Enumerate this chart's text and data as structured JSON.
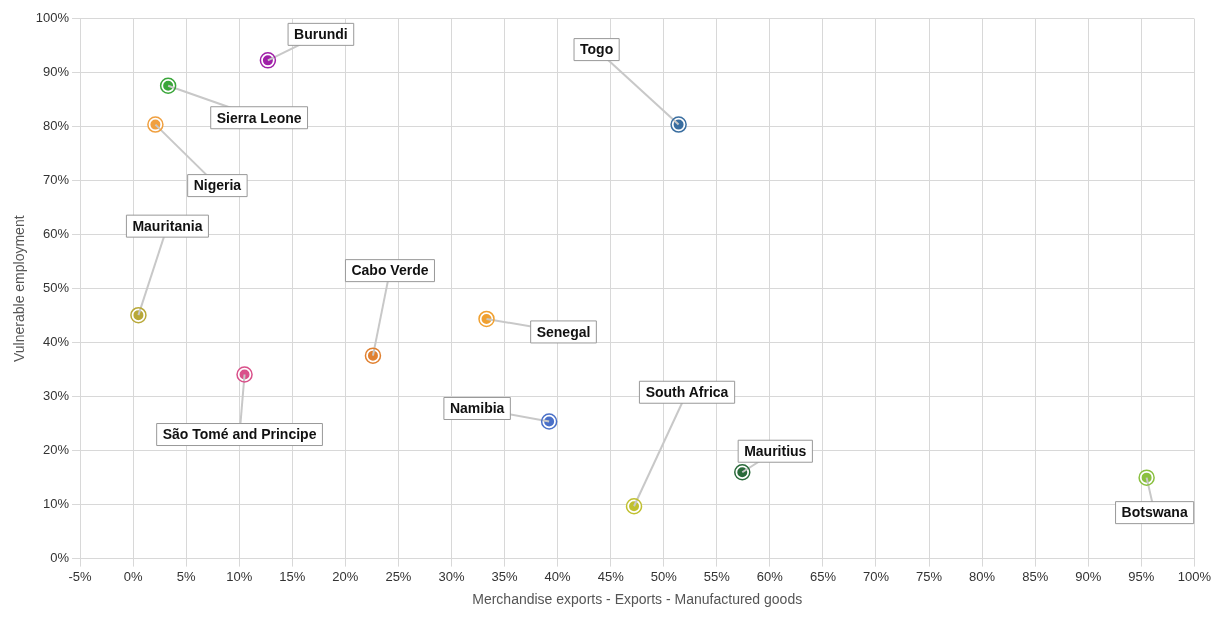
{
  "chart_data": {
    "type": "scatter",
    "xlabel": "Merchandise exports - Exports - Manufactured goods",
    "ylabel": "Vulnerable employment",
    "x": [
      12.7,
      3.3,
      2.1,
      0.5,
      10.5,
      22.6,
      33.3,
      39.2,
      51.4,
      47.2,
      57.4,
      95.5
    ],
    "values": [
      92.3,
      87.6,
      80.4,
      45.1,
      34.1,
      37.6,
      44.4,
      25.4,
      80.4,
      9.7,
      16.0,
      15.0
    ],
    "colors": [
      "#a020a8",
      "#3aa63a",
      "#f0a040",
      "#b8a838",
      "#d9508a",
      "#e08030",
      "#f0a030",
      "#4a70c8",
      "#3a6ea0",
      "#c0c030",
      "#2a6a3a",
      "#8ac040"
    ],
    "annotations": [
      {
        "text": "Burundi",
        "x": 12.7,
        "y": 92.3
      },
      {
        "text": "Sierra Leone",
        "x": 3.3,
        "y": 87.6
      },
      {
        "text": "Nigeria",
        "x": 2.1,
        "y": 80.4
      },
      {
        "text": "Mauritania",
        "x": 0.5,
        "y": 45.1
      },
      {
        "text": "São Tomé and Principe",
        "x": 10.5,
        "y": 34.1
      },
      {
        "text": "Cabo Verde",
        "x": 22.6,
        "y": 37.6
      },
      {
        "text": "Senegal",
        "x": 33.3,
        "y": 44.4
      },
      {
        "text": "Namibia",
        "x": 39.2,
        "y": 25.4
      },
      {
        "text": "Togo",
        "x": 51.4,
        "y": 80.4
      },
      {
        "text": "South Africa",
        "x": 47.2,
        "y": 9.7
      },
      {
        "text": "Mauritius",
        "x": 57.4,
        "y": 16.0
      },
      {
        "text": "Botswana",
        "x": 95.5,
        "y": 15.0
      }
    ],
    "xlim": [
      -5,
      100
    ],
    "xticks": [
      {
        "value": -5,
        "label": "-5%"
      },
      {
        "value": 0,
        "label": "0%"
      },
      {
        "value": 5,
        "label": "5%"
      },
      {
        "value": 10,
        "label": "10%"
      },
      {
        "value": 15,
        "label": "15%"
      },
      {
        "value": 20,
        "label": "20%"
      },
      {
        "value": 25,
        "label": "25%"
      },
      {
        "value": 30,
        "label": "30%"
      },
      {
        "value": 35,
        "label": "35%"
      },
      {
        "value": 40,
        "label": "40%"
      },
      {
        "value": 45,
        "label": "45%"
      },
      {
        "value": 50,
        "label": "50%"
      },
      {
        "value": 55,
        "label": "55%"
      },
      {
        "value": 60,
        "label": "60%"
      },
      {
        "value": 65,
        "label": "65%"
      },
      {
        "value": 70,
        "label": "70%"
      },
      {
        "value": 75,
        "label": "75%"
      },
      {
        "value": 80,
        "label": "80%"
      },
      {
        "value": 85,
        "label": "85%"
      },
      {
        "value": 90,
        "label": "90%"
      },
      {
        "value": 95,
        "label": "95%"
      },
      {
        "value": 100,
        "label": "100%"
      }
    ],
    "ylim": [
      0,
      100
    ],
    "yticks": [
      {
        "value": 0,
        "label": "0%"
      },
      {
        "value": 10,
        "label": "10%"
      },
      {
        "value": 20,
        "label": "20%"
      },
      {
        "value": 30,
        "label": "30%"
      },
      {
        "value": 40,
        "label": "40%"
      },
      {
        "value": 50,
        "label": "50%"
      },
      {
        "value": 60,
        "label": "60%"
      },
      {
        "value": 70,
        "label": "70%"
      },
      {
        "value": 80,
        "label": "80%"
      },
      {
        "value": 90,
        "label": "90%"
      },
      {
        "value": 100,
        "label": "100%"
      }
    ],
    "grid": true,
    "legend": false,
    "marker": "circle"
  }
}
